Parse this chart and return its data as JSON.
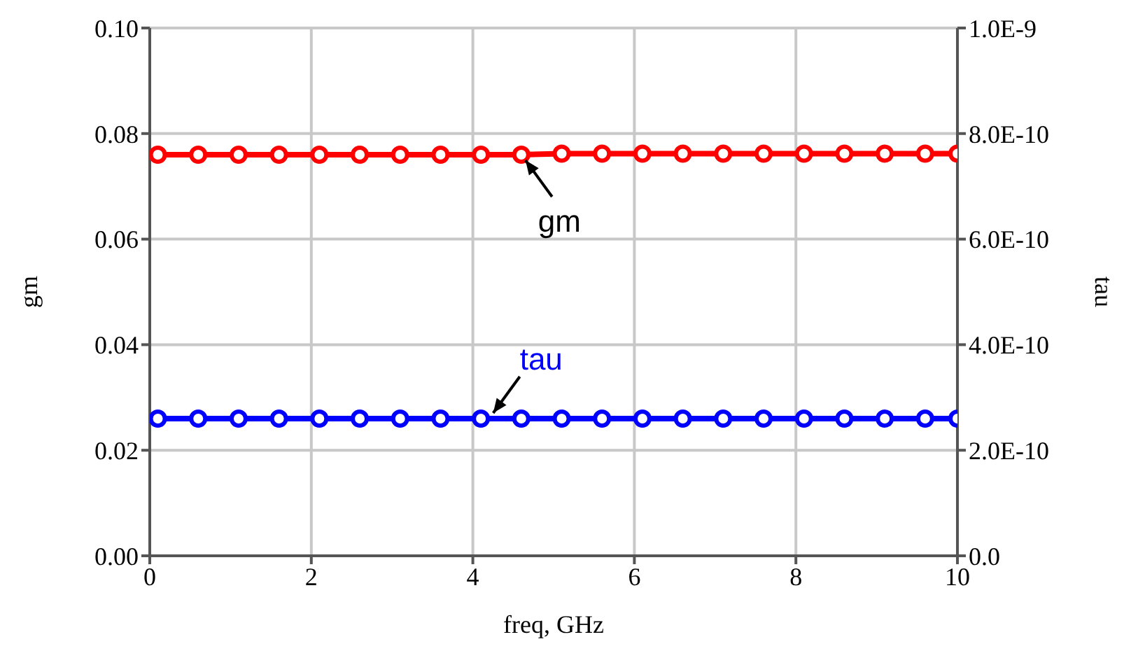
{
  "chart_data": {
    "type": "line",
    "xlabel": "freq, GHz",
    "ylabel": "gm",
    "y2label": "tau",
    "x": [
      0.1,
      0.6,
      1.1,
      1.6,
      2.1,
      2.6,
      3.1,
      3.6,
      4.1,
      4.6,
      5.1,
      5.6,
      6.1,
      6.6,
      7.1,
      7.6,
      8.1,
      8.6,
      9.1,
      9.6,
      10
    ],
    "series": [
      {
        "color": "#ff0000",
        "values": [
          0.076,
          0.076,
          0.076,
          0.076,
          0.076,
          0.076,
          0.076,
          0.076,
          0.076,
          0.076,
          0.0762,
          0.0762,
          0.0762,
          0.0762,
          0.0762,
          0.0762,
          0.0762,
          0.0762,
          0.0762,
          0.0762,
          0.0762
        ]
      },
      {
        "color": "#0000ff",
        "axis": "y2",
        "values": [
          2.6e-10,
          2.6e-10,
          2.6e-10,
          2.6e-10,
          2.6e-10,
          2.6e-10,
          2.6e-10,
          2.6e-10,
          2.6e-10,
          2.6e-10,
          2.6e-10,
          2.6e-10,
          2.6e-10,
          2.6e-10,
          2.6e-10,
          2.6e-10,
          2.6e-10,
          2.6e-10,
          2.6e-10,
          2.6e-10,
          2.6e-10
        ]
      }
    ],
    "annotations": [
      {
        "text": "gm",
        "x": 4.6,
        "y": 0.076
      },
      {
        "text": "tau",
        "x": 4.2,
        "y": 0.026
      }
    ],
    "xlim": [
      0,
      10
    ],
    "xticks": [
      0,
      2,
      4,
      6,
      8,
      10
    ],
    "ylim": [
      0,
      0.1
    ],
    "yticks": [
      {
        "value": 0,
        "label": "0.00"
      },
      {
        "value": 0.02,
        "label": "0.02"
      },
      {
        "value": 0.04,
        "label": "0.04"
      },
      {
        "value": 0.06,
        "label": "0.06"
      },
      {
        "value": 0.08,
        "label": "0.08"
      },
      {
        "value": 0.1,
        "label": "0.10"
      }
    ],
    "y2lim": [
      0,
      1e-09
    ],
    "y2ticks": [
      {
        "value": 0,
        "label": "0.0"
      },
      {
        "value": 2e-10,
        "label": "2.0E-10"
      },
      {
        "value": 4e-10,
        "label": "4.0E-10"
      },
      {
        "value": 6e-10,
        "label": "6.0E-10"
      },
      {
        "value": 8e-10,
        "label": "8.0E-10"
      },
      {
        "value": 1e-09,
        "label": "1.0E-9"
      }
    ],
    "grid": true,
    "marker": "circle",
    "line_style": "solid"
  }
}
